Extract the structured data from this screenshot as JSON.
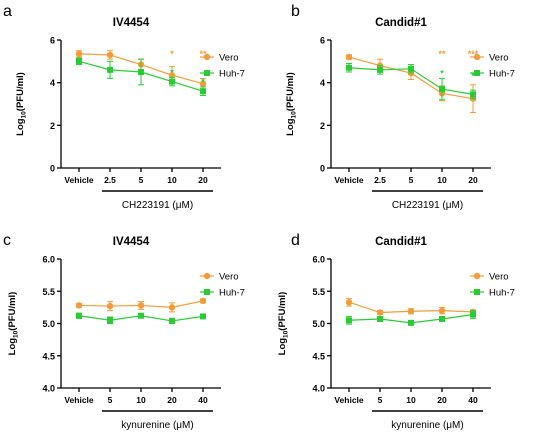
{
  "colors": {
    "vero": "#F39C3A",
    "huh7": "#2BCB36",
    "axis": "#000000"
  },
  "chart_data": [
    {
      "type": "line",
      "panel_letter": "a",
      "title": "IV4454",
      "ylabel_main": "Log",
      "ylabel_sub": "10",
      "ylabel_tail": "(PFU/ml)",
      "xlabel": "CH223191 (μM)",
      "categories": [
        "Vehicle",
        "2.5",
        "5",
        "10",
        "20"
      ],
      "ylim": [
        0,
        6
      ],
      "yticks": [
        "0",
        "2",
        "4",
        "6"
      ],
      "group_bar_start_index": 1,
      "legend_position": "top-right",
      "series": [
        {
          "name": "Vero",
          "color_key": "vero",
          "marker": "circle",
          "values": [
            5.35,
            5.3,
            4.85,
            4.35,
            3.95
          ],
          "errors": [
            0.15,
            0.2,
            0.25,
            0.4,
            0.25
          ],
          "significance": [
            "",
            "",
            "",
            "*",
            "**"
          ]
        },
        {
          "name": "Huh-7",
          "color_key": "huh7",
          "marker": "square",
          "values": [
            5.0,
            4.6,
            4.5,
            4.05,
            3.6
          ],
          "errors": [
            0.15,
            0.4,
            0.6,
            0.2,
            0.2
          ],
          "significance": [
            "",
            "",
            "",
            "*",
            "*"
          ]
        }
      ]
    },
    {
      "type": "line",
      "panel_letter": "b",
      "title": "Candid#1",
      "ylabel_main": "Log",
      "ylabel_sub": "10",
      "ylabel_tail": "(PFU/ml)",
      "xlabel": "CH223191 (μM)",
      "categories": [
        "Vehicle",
        "2.5",
        "5",
        "10",
        "20"
      ],
      "ylim": [
        0,
        6
      ],
      "yticks": [
        "0",
        "2",
        "4",
        "6"
      ],
      "group_bar_start_index": 1,
      "legend_position": "top-right",
      "series": [
        {
          "name": "Vero",
          "color_key": "vero",
          "marker": "circle",
          "values": [
            5.2,
            4.8,
            4.45,
            3.5,
            3.25
          ],
          "errors": [
            0.1,
            0.3,
            0.3,
            0.35,
            0.65
          ],
          "significance": [
            "",
            "",
            "",
            "**",
            "***"
          ]
        },
        {
          "name": "Huh-7",
          "color_key": "huh7",
          "marker": "square",
          "values": [
            4.7,
            4.6,
            4.65,
            3.7,
            3.45
          ],
          "errors": [
            0.2,
            0.2,
            0.2,
            0.5,
            0.2
          ],
          "significance": [
            "",
            "",
            "",
            "*",
            "*"
          ]
        }
      ]
    },
    {
      "type": "line",
      "panel_letter": "c",
      "title": "IV4454",
      "ylabel_main": "Log",
      "ylabel_sub": "10",
      "ylabel_tail": "(PFU/ml)",
      "xlabel": "kynurenine (μM)",
      "categories": [
        "Vehicle",
        "5",
        "10",
        "20",
        "40"
      ],
      "ylim": [
        4.0,
        6.0
      ],
      "yticks": [
        "4.0",
        "4.5",
        "5.0",
        "5.5",
        "6.0"
      ],
      "group_bar_start_index": 1,
      "legend_position": "top-right",
      "series": [
        {
          "name": "Vero",
          "color_key": "vero",
          "marker": "circle",
          "values": [
            5.28,
            5.27,
            5.28,
            5.25,
            5.35
          ],
          "errors": [
            0.03,
            0.07,
            0.06,
            0.07,
            0.03
          ],
          "significance": [
            "",
            "",
            "",
            "",
            ""
          ]
        },
        {
          "name": "Huh-7",
          "color_key": "huh7",
          "marker": "square",
          "values": [
            5.12,
            5.05,
            5.12,
            5.04,
            5.11
          ],
          "errors": [
            0.04,
            0.05,
            0.03,
            0.04,
            0.03
          ],
          "significance": [
            "",
            "",
            "",
            "",
            ""
          ]
        }
      ]
    },
    {
      "type": "line",
      "panel_letter": "d",
      "title": "Candid#1",
      "ylabel_main": "Log",
      "ylabel_sub": "10",
      "ylabel_tail": "(PFU/ml)",
      "xlabel": "kynurenine (μM)",
      "categories": [
        "Vehicle",
        "5",
        "10",
        "20",
        "40"
      ],
      "ylim": [
        4.0,
        6.0
      ],
      "yticks": [
        "4.0",
        "4.5",
        "5.0",
        "5.5",
        "6.0"
      ],
      "group_bar_start_index": 1,
      "legend_position": "top-right",
      "series": [
        {
          "name": "Vero",
          "color_key": "vero",
          "marker": "circle",
          "values": [
            5.33,
            5.17,
            5.19,
            5.2,
            5.18
          ],
          "errors": [
            0.06,
            0.03,
            0.04,
            0.05,
            0.03
          ],
          "significance": [
            "",
            "",
            "",
            "",
            ""
          ]
        },
        {
          "name": "Huh-7",
          "color_key": "huh7",
          "marker": "square",
          "values": [
            5.05,
            5.07,
            5.01,
            5.07,
            5.14
          ],
          "errors": [
            0.06,
            0.03,
            0.03,
            0.03,
            0.06
          ],
          "significance": [
            "",
            "",
            "",
            "",
            ""
          ]
        }
      ]
    }
  ]
}
